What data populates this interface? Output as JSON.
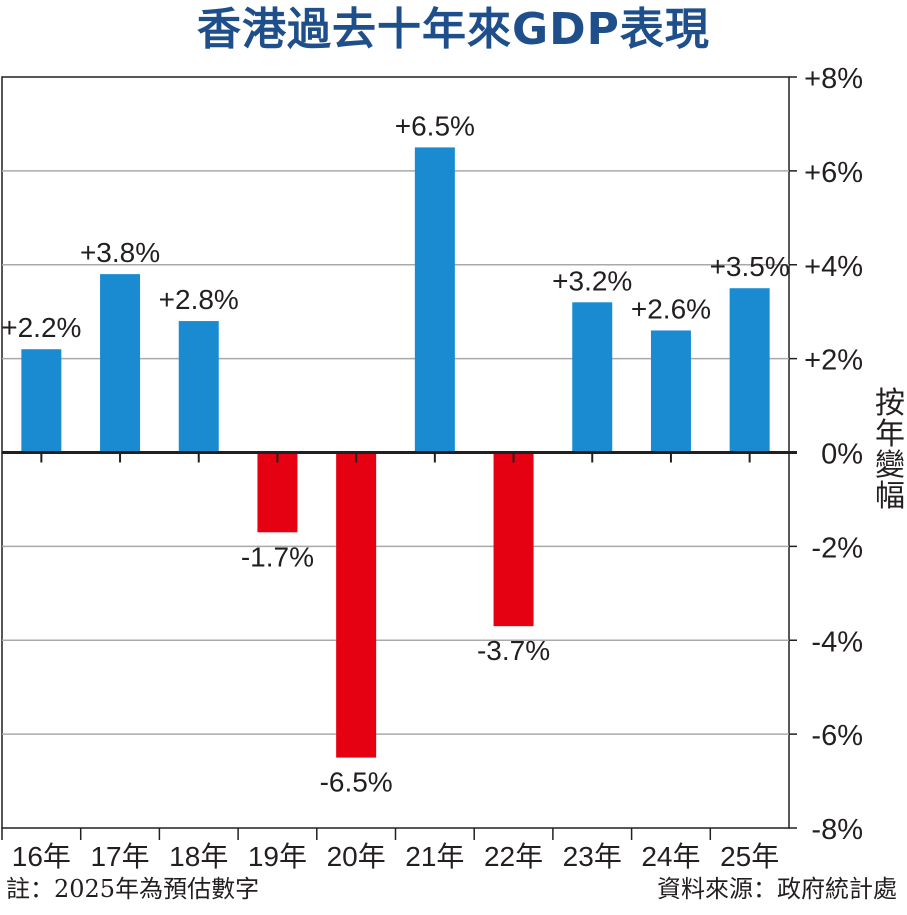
{
  "header": {
    "title": "香港過去十年來GDP表現"
  },
  "chart_data": {
    "type": "bar",
    "title": "香港過去十年來GDP表現",
    "ylabel": "按年變幅",
    "xlabel": "",
    "categories": [
      "16年",
      "17年",
      "18年",
      "19年",
      "20年",
      "21年",
      "22年",
      "23年",
      "24年",
      "25年"
    ],
    "values": [
      2.2,
      3.8,
      2.8,
      -1.7,
      -6.5,
      6.5,
      -3.7,
      3.2,
      2.6,
      3.5
    ],
    "data_labels": [
      "+2.2%",
      "+3.8%",
      "+2.8%",
      "-1.7%",
      "-6.5%",
      "+6.5%",
      "-3.7%",
      "+3.2%",
      "+2.6%",
      "+3.5%"
    ],
    "yticks": [
      8,
      6,
      4,
      2,
      0,
      -2,
      -4,
      -6,
      -8
    ],
    "ytick_labels": [
      "+8%",
      "+6%",
      "+4%",
      "+2%",
      "0%",
      "-2%",
      "-4%",
      "-6%",
      "-8%"
    ],
    "ylim": [
      -8,
      8
    ],
    "grid": true,
    "axis_position": "right",
    "colors": {
      "positive": "#1a8bd0",
      "negative": "#e50012",
      "grid": "#a7a9ac",
      "axis": "#231f20",
      "title": "#1f4f8a"
    }
  },
  "footer": {
    "note": "註：2025年為預估數字",
    "source": "資料來源：政府統計處"
  }
}
